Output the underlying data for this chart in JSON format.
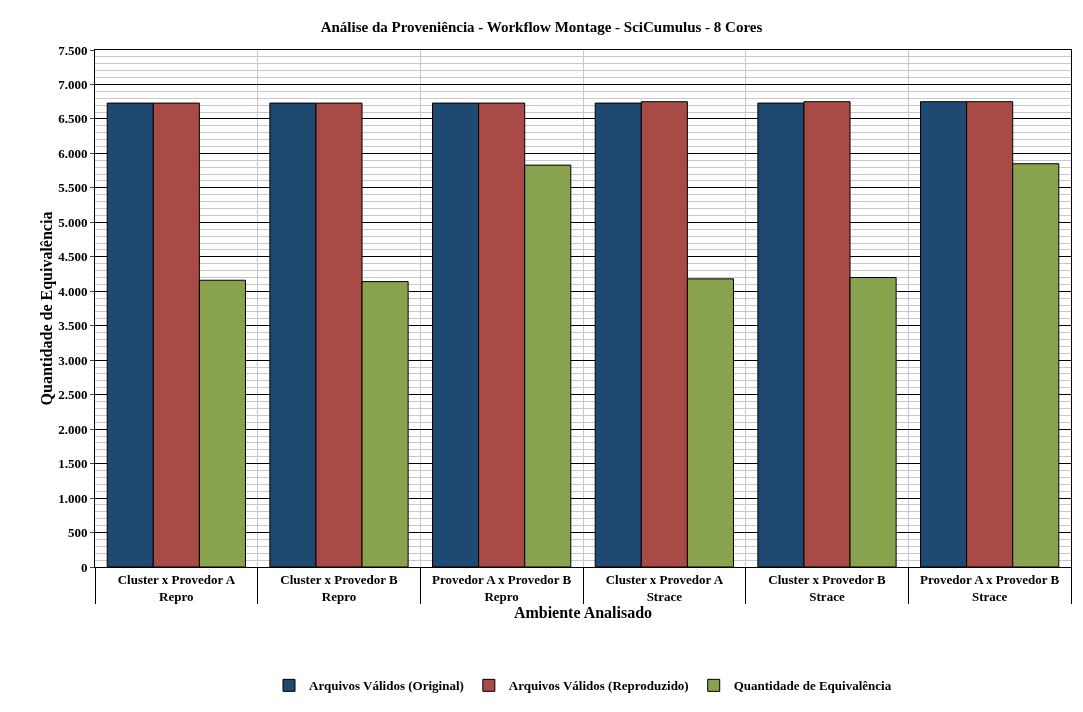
{
  "chart_data": {
    "type": "bar",
    "title": "Análise da Proveniência - Workflow Montage - SciCumulus - 8 Cores",
    "xlabel": "Ambiente Analisado",
    "ylabel": "Quantidade de Equivalência",
    "categories": [
      "Cluster x Provedor A\nRepro",
      "Cluster x Provedor B\nRepro",
      "Provedor A x Provedor B\nRepro",
      "Cluster x Provedor A\nStrace",
      "Cluster x Provedor B\nStrace",
      "Provedor A x Provedor B\nStrace"
    ],
    "series": [
      {
        "name": "Arquivos Válidos (Original)",
        "color": "#1f4971",
        "values": [
          6730,
          6730,
          6730,
          6730,
          6730,
          6750
        ]
      },
      {
        "name": "Arquivos Válidos (Reproduzido)",
        "color": "#a84a45",
        "values": [
          6730,
          6730,
          6730,
          6750,
          6750,
          6750
        ]
      },
      {
        "name": "Quantidade de Equivalência",
        "color": "#89a24d",
        "values": [
          4160,
          4140,
          5830,
          4180,
          4200,
          5850
        ]
      }
    ],
    "ylim": [
      0,
      7500
    ],
    "yticks": [
      {
        "value": 0,
        "label": "0"
      },
      {
        "value": 500,
        "label": "500"
      },
      {
        "value": 1000,
        "label": "1.000"
      },
      {
        "value": 1500,
        "label": "1.500"
      },
      {
        "value": 2000,
        "label": "2.000"
      },
      {
        "value": 2500,
        "label": "2.500"
      },
      {
        "value": 3000,
        "label": "3.000"
      },
      {
        "value": 3500,
        "label": "3.500"
      },
      {
        "value": 4000,
        "label": "4.000"
      },
      {
        "value": 4500,
        "label": "4.500"
      },
      {
        "value": 5000,
        "label": "5.000"
      },
      {
        "value": 5500,
        "label": "5.500"
      },
      {
        "value": 6000,
        "label": "6.000"
      },
      {
        "value": 6500,
        "label": "6.500"
      },
      {
        "value": 7000,
        "label": "7.000"
      },
      {
        "value": 7500,
        "label": "7.500"
      }
    ],
    "grid": true,
    "legend": "bottom"
  }
}
